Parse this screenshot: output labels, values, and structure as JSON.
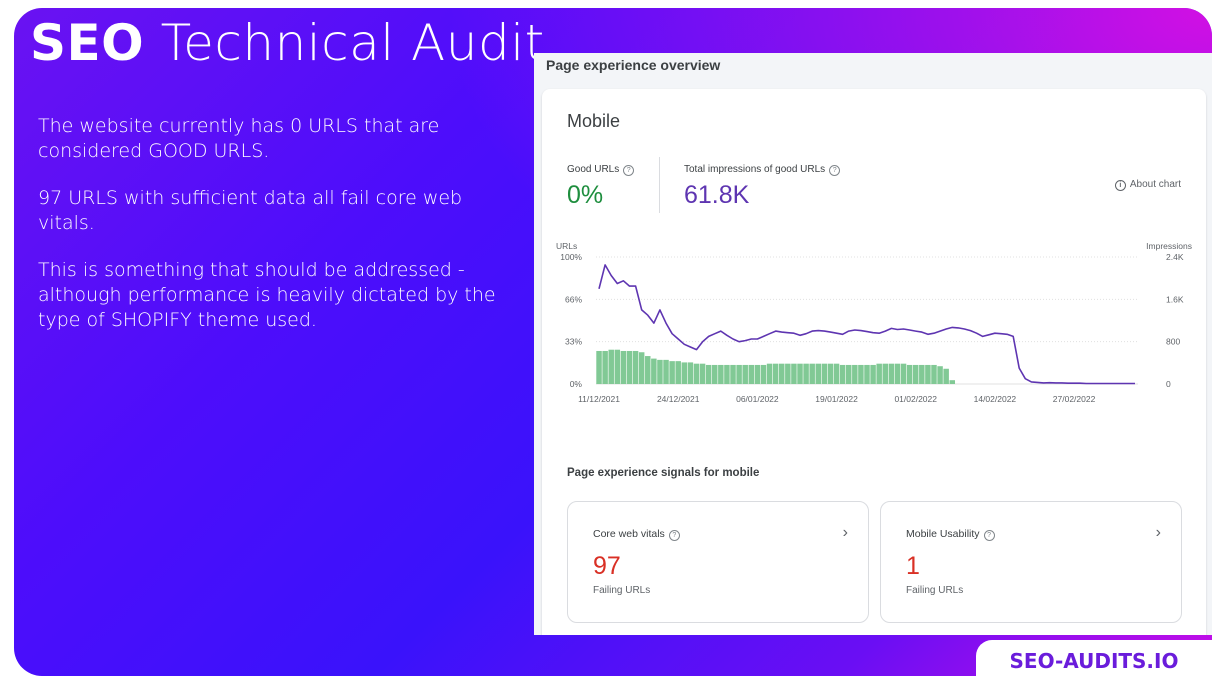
{
  "slide": {
    "title_bold": "SEO",
    "title_rest": "Technical Audit",
    "paragraphs": [
      "The website currently has 0 URLS that are considered GOOD URLS.",
      "97 URLS with sufficient data all fail core web vitals.",
      "This is something that should be addressed - although performance is heavily dictated by the type of SHOPIFY theme used."
    ],
    "brand": "SEO-AUDITS.IO"
  },
  "panel": {
    "header": "Page experience overview",
    "card_title": "Mobile",
    "good_urls": {
      "label": "Good URLs",
      "value": "0%"
    },
    "impressions": {
      "label": "Total impressions of good URLs",
      "value": "61.8K"
    },
    "about_chart": "About chart",
    "signals_title": "Page experience signals for mobile",
    "signals": [
      {
        "label": "Core web vitals",
        "value": "97",
        "sub": "Failing URLs"
      },
      {
        "label": "Mobile Usability",
        "value": "1",
        "sub": "Failing URLs"
      }
    ]
  },
  "colors": {
    "good_green": "#1e8e3e",
    "impressions_purple": "#5e35b1",
    "bar_green": "#81c995",
    "fail_red": "#d93025"
  },
  "chart_data": {
    "type": "bar",
    "left_axis_title": "URLs",
    "right_axis_title": "Impressions",
    "left_ticks": [
      "100%",
      "66%",
      "33%",
      "0%"
    ],
    "right_ticks": [
      "2.4K",
      "1.6K",
      "800",
      "0"
    ],
    "x_ticks": [
      "11/12/2021",
      "24/12/2021",
      "06/01/2022",
      "19/01/2022",
      "01/02/2022",
      "14/02/2022",
      "27/02/2022"
    ],
    "ylim_left": [
      0,
      100
    ],
    "ylim_right": [
      0,
      2400
    ],
    "series": [
      {
        "name": "URLs",
        "kind": "bar",
        "values": [
          26,
          26,
          27,
          27,
          26,
          26,
          26,
          25,
          22,
          20,
          19,
          19,
          18,
          18,
          17,
          17,
          16,
          16,
          15,
          15,
          15,
          15,
          15,
          15,
          15,
          15,
          15,
          15,
          16,
          16,
          16,
          16,
          16,
          16,
          16,
          16,
          16,
          16,
          16,
          16,
          15,
          15,
          15,
          15,
          15,
          15,
          16,
          16,
          16,
          16,
          16,
          15,
          15,
          15,
          15,
          15,
          14,
          12,
          3,
          0,
          0,
          0,
          0,
          0,
          0,
          0,
          0,
          0,
          0,
          0,
          0,
          0,
          0,
          0,
          0,
          0,
          0,
          0,
          0,
          0,
          0,
          0,
          0,
          0,
          0,
          0,
          0,
          0,
          0
        ]
      },
      {
        "name": "Impressions",
        "kind": "line",
        "values": [
          1800,
          2250,
          2050,
          1900,
          1950,
          1850,
          1850,
          1400,
          1300,
          1150,
          1400,
          1150,
          950,
          850,
          750,
          700,
          650,
          800,
          900,
          950,
          1000,
          920,
          850,
          800,
          820,
          850,
          850,
          900,
          950,
          1000,
          980,
          970,
          960,
          920,
          950,
          1000,
          1010,
          1000,
          980,
          960,
          940,
          1000,
          1020,
          1010,
          990,
          970,
          960,
          1000,
          1050,
          1030,
          1040,
          1020,
          1000,
          980,
          940,
          960,
          1000,
          1040,
          1070,
          1060,
          1040,
          1010,
          960,
          900,
          930,
          960,
          950,
          940,
          900,
          300,
          100,
          40,
          30,
          20,
          25,
          20,
          20,
          15,
          15,
          15,
          10,
          10,
          10,
          10,
          10,
          10,
          10,
          10,
          10
        ]
      }
    ]
  }
}
